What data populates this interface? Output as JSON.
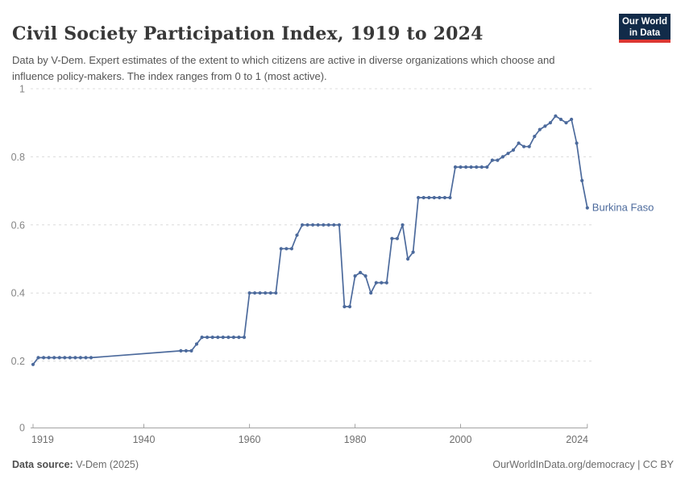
{
  "header": {
    "title": "Civil Society Participation Index, 1919 to 2024",
    "subtitle": "Data by V-Dem. Expert estimates of the extent to which citizens are active in diverse organizations which choose and influence policy-makers. The index ranges from 0 to 1 (most active)."
  },
  "logo": {
    "line1": "Our World",
    "line2": "in Data",
    "bg_color": "#122b49",
    "accent_color": "#dc3732"
  },
  "chart_data": {
    "type": "line",
    "title": "Civil Society Participation Index, 1919 to 2024",
    "xlabel": "",
    "ylabel": "",
    "ylim": [
      0,
      1
    ],
    "yticks": [
      0,
      0.2,
      0.4,
      0.6,
      0.8,
      1
    ],
    "ytick_labels": [
      "0",
      "0.2",
      "0.4",
      "0.6",
      "0.8",
      "1"
    ],
    "xticks": [
      1919,
      1940,
      1960,
      1980,
      2000,
      2024
    ],
    "grid": "horizontal-dashed",
    "legend_position": "end-of-line-label",
    "data_gap_years": [
      1931,
      1946
    ],
    "series": [
      {
        "name": "Burkina Faso",
        "color": "#4c6a9c",
        "points": [
          [
            1919,
            0.19
          ],
          [
            1920,
            0.21
          ],
          [
            1921,
            0.21
          ],
          [
            1922,
            0.21
          ],
          [
            1923,
            0.21
          ],
          [
            1924,
            0.21
          ],
          [
            1925,
            0.21
          ],
          [
            1926,
            0.21
          ],
          [
            1927,
            0.21
          ],
          [
            1928,
            0.21
          ],
          [
            1929,
            0.21
          ],
          [
            1930,
            0.21
          ],
          [
            1947,
            0.23
          ],
          [
            1948,
            0.23
          ],
          [
            1949,
            0.23
          ],
          [
            1950,
            0.25
          ],
          [
            1951,
            0.27
          ],
          [
            1952,
            0.27
          ],
          [
            1953,
            0.27
          ],
          [
            1954,
            0.27
          ],
          [
            1955,
            0.27
          ],
          [
            1956,
            0.27
          ],
          [
            1957,
            0.27
          ],
          [
            1958,
            0.27
          ],
          [
            1959,
            0.27
          ],
          [
            1960,
            0.4
          ],
          [
            1961,
            0.4
          ],
          [
            1962,
            0.4
          ],
          [
            1963,
            0.4
          ],
          [
            1964,
            0.4
          ],
          [
            1965,
            0.4
          ],
          [
            1966,
            0.53
          ],
          [
            1967,
            0.53
          ],
          [
            1968,
            0.53
          ],
          [
            1969,
            0.57
          ],
          [
            1970,
            0.6
          ],
          [
            1971,
            0.6
          ],
          [
            1972,
            0.6
          ],
          [
            1973,
            0.6
          ],
          [
            1974,
            0.6
          ],
          [
            1975,
            0.6
          ],
          [
            1976,
            0.6
          ],
          [
            1977,
            0.6
          ],
          [
            1978,
            0.36
          ],
          [
            1979,
            0.36
          ],
          [
            1980,
            0.45
          ],
          [
            1981,
            0.46
          ],
          [
            1982,
            0.45
          ],
          [
            1983,
            0.4
          ],
          [
            1984,
            0.43
          ],
          [
            1985,
            0.43
          ],
          [
            1986,
            0.43
          ],
          [
            1987,
            0.56
          ],
          [
            1988,
            0.56
          ],
          [
            1989,
            0.6
          ],
          [
            1990,
            0.5
          ],
          [
            1991,
            0.52
          ],
          [
            1992,
            0.68
          ],
          [
            1993,
            0.68
          ],
          [
            1994,
            0.68
          ],
          [
            1995,
            0.68
          ],
          [
            1996,
            0.68
          ],
          [
            1997,
            0.68
          ],
          [
            1998,
            0.68
          ],
          [
            1999,
            0.77
          ],
          [
            2000,
            0.77
          ],
          [
            2001,
            0.77
          ],
          [
            2002,
            0.77
          ],
          [
            2003,
            0.77
          ],
          [
            2004,
            0.77
          ],
          [
            2005,
            0.77
          ],
          [
            2006,
            0.79
          ],
          [
            2007,
            0.79
          ],
          [
            2008,
            0.8
          ],
          [
            2009,
            0.81
          ],
          [
            2010,
            0.82
          ],
          [
            2011,
            0.84
          ],
          [
            2012,
            0.83
          ],
          [
            2013,
            0.83
          ],
          [
            2014,
            0.86
          ],
          [
            2015,
            0.88
          ],
          [
            2016,
            0.89
          ],
          [
            2017,
            0.9
          ],
          [
            2018,
            0.92
          ],
          [
            2019,
            0.91
          ],
          [
            2020,
            0.9
          ],
          [
            2021,
            0.91
          ],
          [
            2022,
            0.84
          ],
          [
            2023,
            0.73
          ],
          [
            2024,
            0.65
          ]
        ]
      }
    ]
  },
  "footer": {
    "source_label": "Data source:",
    "source_value": " V-Dem (2025)",
    "attribution": "OurWorldInData.org/democracy | CC BY"
  }
}
